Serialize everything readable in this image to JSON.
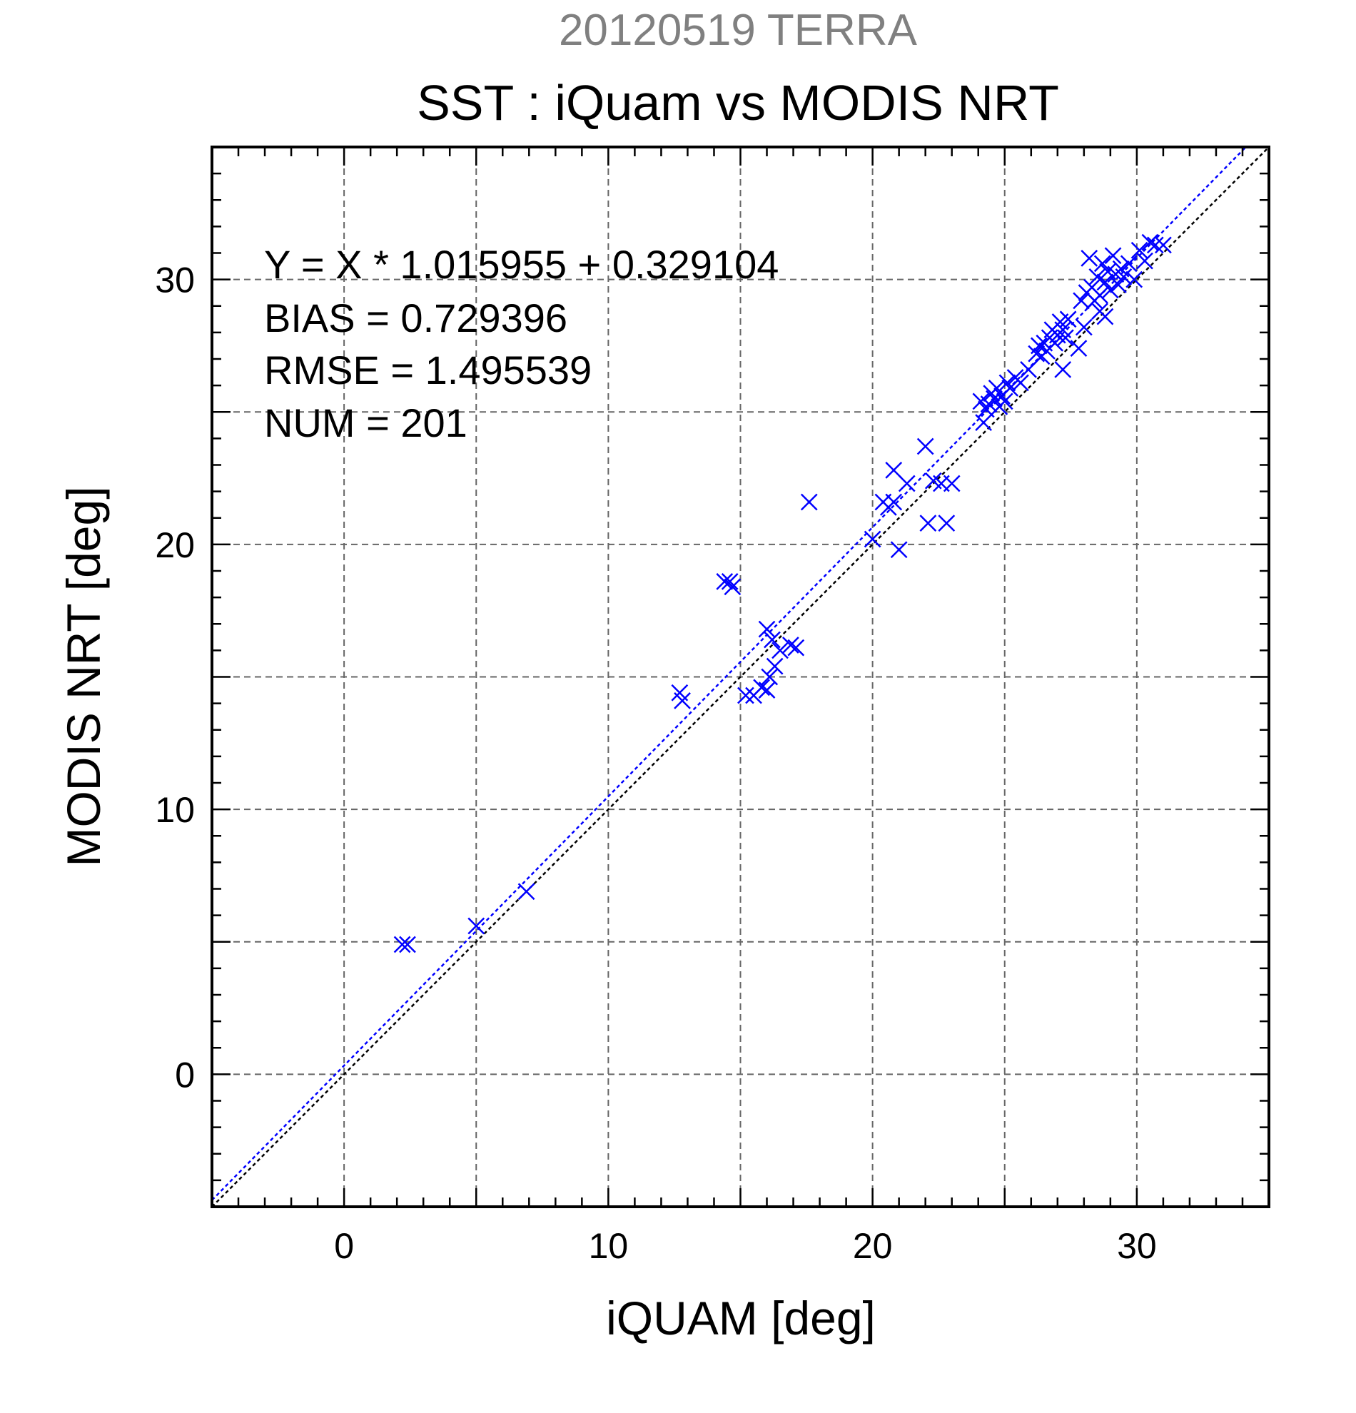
{
  "chart_data": {
    "type": "scatter",
    "supertitle": "20120519 TERRA",
    "title": "SST : iQuam vs MODIS NRT",
    "xlabel": "iQUAM [deg]",
    "ylabel": "MODIS NRT [deg]",
    "xlim": [
      -5,
      35
    ],
    "ylim": [
      -5,
      35
    ],
    "x_ticks": [
      0,
      10,
      20,
      30
    ],
    "y_ticks": [
      0,
      10,
      20,
      30
    ],
    "grid": true,
    "colors": {
      "points": "#0000ff",
      "fit_line": "#0000ff",
      "identity_line": "#000000",
      "supertitle": "#808080"
    },
    "marker": "x",
    "stats": [
      "Y = X * 1.015955 + 0.329104",
      "BIAS = 0.729396",
      "RMSE = 1.495539",
      "NUM = 201"
    ],
    "fit": {
      "slope": 1.015955,
      "intercept": 0.329104
    },
    "identity": {
      "slope": 1,
      "intercept": 0
    },
    "points": [
      [
        2.2,
        4.9
      ],
      [
        2.4,
        4.9
      ],
      [
        5.0,
        5.6
      ],
      [
        6.9,
        6.9
      ],
      [
        12.7,
        14.4
      ],
      [
        12.8,
        14.1
      ],
      [
        14.4,
        18.6
      ],
      [
        14.6,
        18.6
      ],
      [
        14.7,
        18.4
      ],
      [
        15.2,
        14.3
      ],
      [
        15.5,
        14.3
      ],
      [
        15.8,
        14.6
      ],
      [
        16.0,
        14.5
      ],
      [
        16.1,
        15.0
      ],
      [
        16.3,
        15.4
      ],
      [
        16.0,
        16.8
      ],
      [
        16.2,
        16.4
      ],
      [
        16.5,
        16.0
      ],
      [
        16.9,
        16.2
      ],
      [
        17.1,
        16.1
      ],
      [
        17.6,
        21.6
      ],
      [
        20.0,
        20.2
      ],
      [
        20.4,
        21.6
      ],
      [
        20.6,
        21.4
      ],
      [
        20.8,
        21.6
      ],
      [
        20.8,
        22.8
      ],
      [
        21.0,
        19.8
      ],
      [
        21.3,
        22.3
      ],
      [
        22.0,
        23.7
      ],
      [
        22.1,
        20.8
      ],
      [
        22.3,
        22.4
      ],
      [
        22.6,
        22.3
      ],
      [
        22.8,
        20.8
      ],
      [
        23.0,
        22.3
      ],
      [
        24.1,
        25.4
      ],
      [
        24.2,
        24.6
      ],
      [
        24.3,
        25.1
      ],
      [
        24.4,
        25.3
      ],
      [
        24.5,
        25.7
      ],
      [
        24.6,
        25.5
      ],
      [
        24.7,
        25.9
      ],
      [
        24.8,
        25.2
      ],
      [
        24.9,
        25.6
      ],
      [
        25.0,
        25.4
      ],
      [
        25.1,
        26.1
      ],
      [
        25.2,
        25.9
      ],
      [
        25.4,
        26.3
      ],
      [
        25.6,
        26.1
      ],
      [
        25.9,
        26.6
      ],
      [
        26.2,
        27.2
      ],
      [
        26.3,
        27.5
      ],
      [
        26.4,
        27.1
      ],
      [
        26.5,
        27.6
      ],
      [
        26.6,
        27.3
      ],
      [
        26.7,
        27.8
      ],
      [
        26.8,
        28.1
      ],
      [
        26.9,
        27.6
      ],
      [
        27.0,
        27.9
      ],
      [
        27.1,
        28.4
      ],
      [
        27.2,
        28.1
      ],
      [
        27.3,
        27.8
      ],
      [
        27.4,
        28.5
      ],
      [
        27.2,
        26.6
      ],
      [
        27.8,
        27.4
      ],
      [
        27.9,
        29.2
      ],
      [
        28.0,
        28.2
      ],
      [
        28.1,
        29.5
      ],
      [
        28.2,
        30.8
      ],
      [
        28.3,
        29.7
      ],
      [
        28.4,
        29.2
      ],
      [
        28.5,
        30.1
      ],
      [
        28.6,
        29.4
      ],
      [
        28.6,
        28.8
      ],
      [
        28.7,
        30.6
      ],
      [
        28.8,
        29.9
      ],
      [
        28.8,
        28.6
      ],
      [
        28.9,
        30.3
      ],
      [
        29.0,
        29.6
      ],
      [
        29.1,
        30.9
      ],
      [
        29.2,
        30.2
      ],
      [
        29.3,
        29.8
      ],
      [
        29.4,
        30.4
      ],
      [
        29.5,
        30.1
      ],
      [
        29.7,
        30.6
      ],
      [
        29.9,
        30.0
      ],
      [
        30.1,
        31.1
      ],
      [
        30.3,
        30.7
      ],
      [
        30.5,
        31.4
      ],
      [
        30.7,
        31.3
      ],
      [
        31.0,
        31.3
      ]
    ]
  }
}
